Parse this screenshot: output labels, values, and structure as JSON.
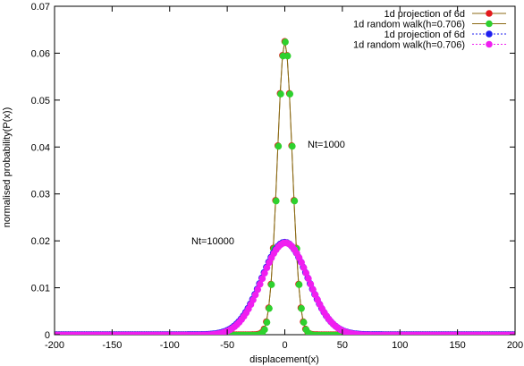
{
  "chart_data": {
    "type": "scatter",
    "xlabel": "displacement(x)",
    "ylabel": "normalised probability(P(x))",
    "xlim": [
      -200,
      200
    ],
    "ylim": [
      0,
      0.07
    ],
    "x_ticks": [
      -200,
      -150,
      -100,
      -50,
      0,
      50,
      100,
      150,
      200
    ],
    "y_ticks": [
      0,
      0.01,
      0.02,
      0.03,
      0.04,
      0.05,
      0.06,
      0.07
    ],
    "x_tick_labels": [
      "-200",
      "-150",
      "-100",
      "-50",
      "0",
      "50",
      "100",
      "150",
      "200"
    ],
    "y_tick_labels": [
      "0",
      "0.01",
      "0.02",
      "0.03",
      "0.04",
      "0.05",
      "0.06",
      "0.07"
    ],
    "grid": false,
    "legend_position": "top-right",
    "annotations": [
      {
        "text": "Nt=1000",
        "x": 40,
        "y": 0.0455
      },
      {
        "text": "Nt=10000",
        "x": -60,
        "y": 0.0195
      }
    ],
    "series": [
      {
        "name": "1d projection of 6d",
        "color": "#e41a1c",
        "line_color": "#8b6914",
        "marker": "circle",
        "sigma": 6.4,
        "peak": 0.0625,
        "x_range": [
          -200,
          200
        ],
        "step": 2
      },
      {
        "name": "1d random walk(h=0.706)",
        "color": "#2ed12e",
        "line_color": "#8b6914",
        "marker": "circle",
        "sigma": 6.4,
        "peak": 0.0625,
        "x_range": [
          -200,
          200
        ],
        "step": 2
      },
      {
        "name": "1d projection of 6d",
        "color": "#1e1ef0",
        "line_color": "#1e1ef0",
        "marker": "circle",
        "sigma": 20.2,
        "peak": 0.0197,
        "x_range": [
          -200,
          200
        ],
        "step": 2
      },
      {
        "name": "1d random walk(h=0.706)",
        "color": "#f01ef0",
        "line_color": "#f01ef0",
        "marker": "circle",
        "sigma": 20.2,
        "peak": 0.0197,
        "x_range": [
          -200,
          200
        ],
        "step": 2
      }
    ]
  }
}
